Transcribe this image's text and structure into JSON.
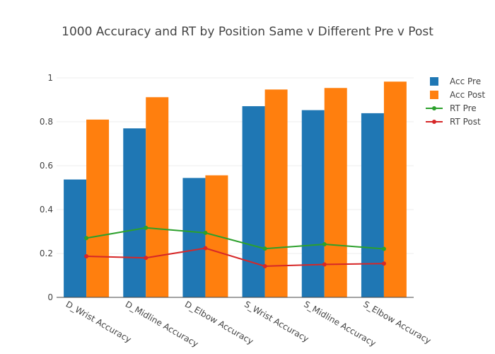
{
  "chart_data": {
    "type": "bar",
    "title": "1000 Accuracy and RT by Position Same v Different Pre v Post",
    "xlabel": "",
    "ylabel": "",
    "ylim": [
      0,
      1
    ],
    "yticks": [
      0,
      0.2,
      0.4,
      0.6,
      0.8,
      1
    ],
    "ytick_labels": [
      "0",
      "0.2",
      "0.4",
      "0.6",
      "0.8",
      "1"
    ],
    "grid": true,
    "legend_position": "top-right",
    "categories": [
      "D_Wrist Accuracy",
      "D_Midline Accuracy",
      "D_Elbow Accuracy",
      "S_Wrist Accuracy",
      "S_Midline Accuracy",
      "S_Elbow Accuracy"
    ],
    "series": [
      {
        "name": "Acc Pre",
        "type": "bar",
        "color": "#1f77b4",
        "values": [
          0.537,
          0.77,
          0.544,
          0.871,
          0.853,
          0.839
        ]
      },
      {
        "name": "Acc Post",
        "type": "bar",
        "color": "#ff7f0e",
        "values": [
          0.81,
          0.912,
          0.556,
          0.947,
          0.954,
          0.983
        ]
      },
      {
        "name": "RT Pre",
        "type": "line",
        "color": "#2ca02c",
        "values": [
          0.27,
          0.317,
          0.294,
          0.222,
          0.242,
          0.221
        ]
      },
      {
        "name": "RT Post",
        "type": "line",
        "color": "#d62728",
        "values": [
          0.187,
          0.18,
          0.224,
          0.142,
          0.15,
          0.154
        ]
      }
    ]
  }
}
